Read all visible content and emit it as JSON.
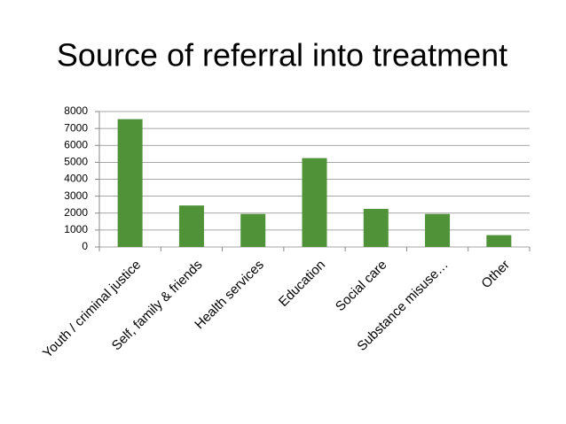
{
  "chart_data": {
    "type": "bar",
    "title": "Source of referral into treatment",
    "categories": [
      "Youth / criminal justice",
      "Self, family & friends",
      "Health services",
      "Education",
      "Social care",
      "Substance misuse…",
      "Other"
    ],
    "values": [
      7550,
      2450,
      1950,
      5250,
      2250,
      1950,
      700
    ],
    "color": "#4f9237",
    "ylim": [
      0,
      8000
    ],
    "yticks": [
      0,
      1000,
      2000,
      3000,
      4000,
      5000,
      6000,
      7000,
      8000
    ],
    "grid": true
  }
}
